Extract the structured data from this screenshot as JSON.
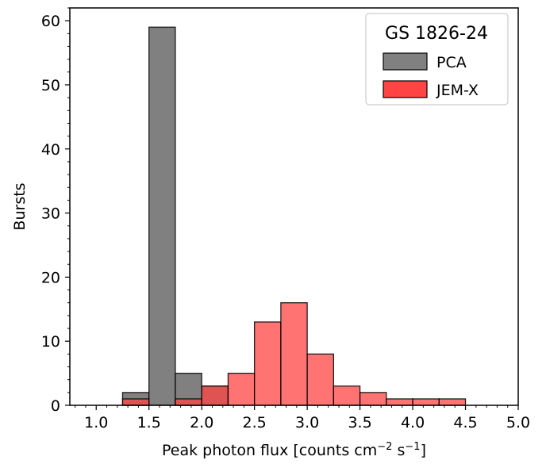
{
  "chart_data": {
    "type": "bar",
    "xlabel": "Peak photon flux [counts cm",
    "xlabel_exp1": "−2",
    "xlabel_mid": " s",
    "xlabel_exp2": "−1",
    "xlabel_end": "]",
    "ylabel": "Bursts",
    "xlim": [
      0.75,
      5.0
    ],
    "ylim": [
      0,
      62
    ],
    "xticks": [
      1.0,
      1.5,
      2.0,
      2.5,
      3.0,
      3.5,
      4.0,
      4.5,
      5.0
    ],
    "xtick_labels": [
      "1.0",
      "1.5",
      "2.0",
      "2.5",
      "3.0",
      "3.5",
      "4.0",
      "4.5",
      "5.0"
    ],
    "yticks": [
      0,
      10,
      20,
      30,
      40,
      50,
      60
    ],
    "ytick_labels": [
      "0",
      "10",
      "20",
      "30",
      "40",
      "50",
      "60"
    ],
    "bin_edges": [
      1.0,
      1.25,
      1.5,
      1.75,
      2.0,
      2.25,
      2.5,
      2.75,
      3.0,
      3.25,
      3.5,
      3.75,
      4.0,
      4.25,
      4.5,
      4.75
    ],
    "series": [
      {
        "name": "PCA",
        "color": "#808080",
        "values": [
          0,
          2,
          59,
          5,
          3,
          0,
          0,
          0,
          0,
          0,
          0,
          0,
          0,
          0,
          0
        ]
      },
      {
        "name": "JEM-X",
        "color": "#ff4444",
        "values": [
          0,
          1,
          0,
          1,
          3,
          5,
          13,
          16,
          8,
          3,
          2,
          1,
          1,
          1,
          0
        ]
      }
    ],
    "legend": {
      "title": "GS 1826-24",
      "position": "upper right"
    },
    "grid": false
  }
}
